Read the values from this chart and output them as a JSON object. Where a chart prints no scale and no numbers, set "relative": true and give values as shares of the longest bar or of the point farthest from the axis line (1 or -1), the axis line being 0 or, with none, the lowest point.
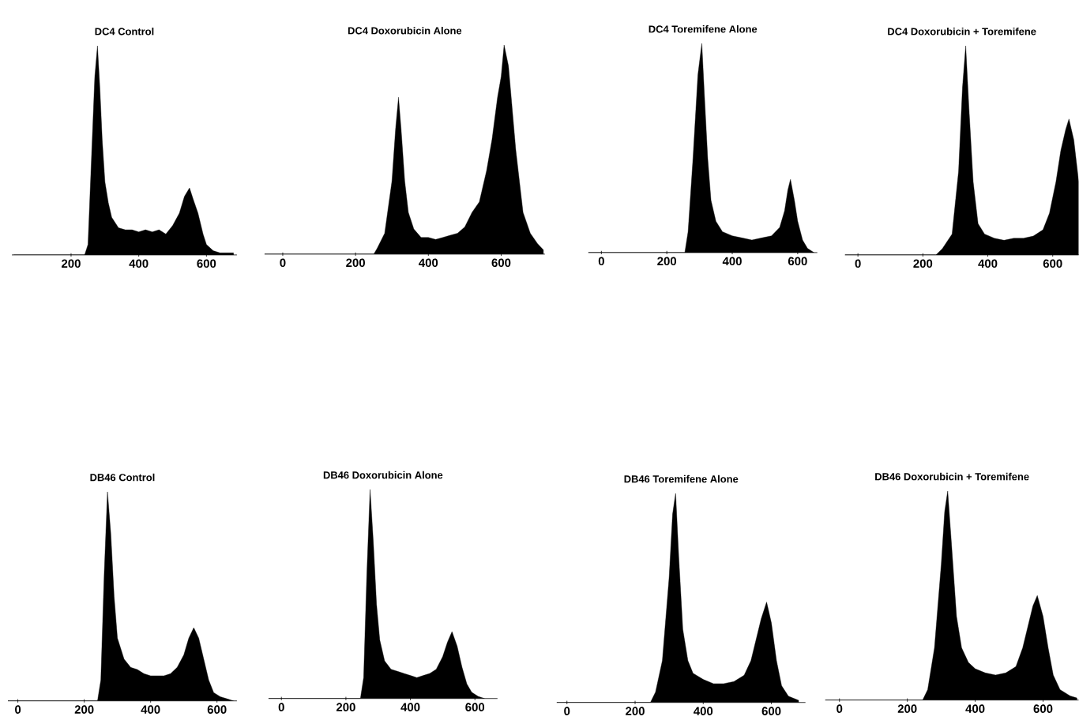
{
  "chart_data": [
    {
      "type": "area",
      "title": "DC4 Control",
      "relative": true,
      "color": "#000000",
      "xlim": [
        25,
        690
      ],
      "xticks": [
        200,
        400,
        600
      ],
      "x": [
        30,
        240,
        250,
        260,
        270,
        278,
        285,
        292,
        300,
        310,
        320,
        340,
        360,
        380,
        400,
        420,
        440,
        460,
        480,
        500,
        520,
        535,
        550,
        560,
        575,
        590,
        600,
        620,
        640,
        660,
        680
      ],
      "values": [
        0,
        0,
        0.05,
        0.45,
        0.85,
        1.0,
        0.8,
        0.55,
        0.35,
        0.25,
        0.18,
        0.13,
        0.12,
        0.12,
        0.11,
        0.12,
        0.11,
        0.12,
        0.1,
        0.14,
        0.2,
        0.28,
        0.32,
        0.27,
        0.2,
        0.1,
        0.05,
        0.02,
        0.01,
        0.01,
        0.01
      ]
    },
    {
      "type": "area",
      "title": "DC4 Doxorubicin Alone",
      "relative": true,
      "color": "#000000",
      "xlim": [
        -50,
        720
      ],
      "xticks": [
        0,
        200,
        400,
        600
      ],
      "x": [
        -50,
        250,
        260,
        280,
        300,
        310,
        318,
        325,
        335,
        345,
        360,
        380,
        400,
        420,
        440,
        460,
        480,
        500,
        520,
        540,
        560,
        575,
        590,
        600,
        608,
        620,
        630,
        640,
        650,
        660,
        680,
        700,
        716
      ],
      "values": [
        0,
        0,
        0.03,
        0.1,
        0.35,
        0.6,
        0.75,
        0.6,
        0.35,
        0.2,
        0.12,
        0.08,
        0.08,
        0.07,
        0.08,
        0.09,
        0.1,
        0.13,
        0.2,
        0.25,
        0.4,
        0.55,
        0.75,
        0.85,
        1.0,
        0.9,
        0.7,
        0.5,
        0.35,
        0.2,
        0.1,
        0.05,
        0.02
      ]
    },
    {
      "type": "area",
      "title": "DC4 Toremifene Alone",
      "relative": true,
      "color": "#000000",
      "xlim": [
        -40,
        660
      ],
      "xticks": [
        0,
        200,
        400,
        600
      ],
      "x": [
        -40,
        255,
        265,
        280,
        295,
        307,
        315,
        325,
        335,
        350,
        370,
        400,
        430,
        460,
        490,
        520,
        545,
        560,
        570,
        578,
        590,
        600,
        615,
        630,
        650
      ],
      "values": [
        0,
        0,
        0.1,
        0.45,
        0.85,
        1.0,
        0.75,
        0.45,
        0.25,
        0.15,
        0.1,
        0.08,
        0.07,
        0.06,
        0.07,
        0.08,
        0.12,
        0.2,
        0.3,
        0.35,
        0.25,
        0.15,
        0.06,
        0.02,
        0
      ]
    },
    {
      "type": "area",
      "title": "DC4 Doxorubicin + Toremifene",
      "relative": true,
      "color": "#000000",
      "xlim": [
        -40,
        680
      ],
      "xticks": [
        0,
        200,
        400,
        600
      ],
      "x": [
        -40,
        240,
        260,
        290,
        310,
        322,
        332,
        342,
        355,
        370,
        390,
        420,
        450,
        480,
        510,
        540,
        570,
        590,
        610,
        625,
        640,
        650,
        665,
        680
      ],
      "values": [
        0,
        0,
        0.03,
        0.1,
        0.4,
        0.8,
        1.0,
        0.7,
        0.35,
        0.15,
        0.1,
        0.08,
        0.07,
        0.08,
        0.08,
        0.09,
        0.12,
        0.2,
        0.35,
        0.5,
        0.6,
        0.65,
        0.55,
        0.35
      ]
    },
    {
      "type": "area",
      "title": "DB46 Control",
      "relative": true,
      "color": "#000000",
      "xlim": [
        -30,
        660
      ],
      "xticks": [
        0,
        200,
        400,
        600
      ],
      "x": [
        -30,
        240,
        250,
        260,
        270,
        280,
        290,
        300,
        320,
        340,
        360,
        380,
        400,
        420,
        440,
        460,
        480,
        500,
        515,
        530,
        545,
        560,
        575,
        590,
        610,
        630,
        650
      ],
      "values": [
        0,
        0,
        0.1,
        0.6,
        1.0,
        0.8,
        0.5,
        0.3,
        0.2,
        0.16,
        0.15,
        0.13,
        0.12,
        0.12,
        0.12,
        0.13,
        0.16,
        0.22,
        0.3,
        0.35,
        0.3,
        0.2,
        0.1,
        0.04,
        0.02,
        0.01,
        0
      ]
    },
    {
      "type": "area",
      "title": "DB46 Doxorubicin Alone",
      "relative": true,
      "color": "#000000",
      "xlim": [
        -40,
        670
      ],
      "xticks": [
        0,
        200,
        400,
        600
      ],
      "x": [
        -40,
        245,
        255,
        265,
        275,
        285,
        295,
        305,
        320,
        340,
        360,
        380,
        400,
        420,
        440,
        460,
        480,
        500,
        515,
        529,
        545,
        560,
        575,
        590,
        610,
        630
      ],
      "values": [
        0,
        0,
        0.1,
        0.6,
        1.0,
        0.75,
        0.45,
        0.28,
        0.18,
        0.14,
        0.13,
        0.12,
        0.11,
        0.1,
        0.11,
        0.12,
        0.14,
        0.2,
        0.27,
        0.32,
        0.25,
        0.15,
        0.07,
        0.03,
        0.01,
        0
      ]
    },
    {
      "type": "area",
      "title": "DB46 Toremifene Alone",
      "relative": true,
      "color": "#000000",
      "xlim": [
        -30,
        700
      ],
      "xticks": [
        0,
        200,
        400,
        600
      ],
      "x": [
        -30,
        245,
        260,
        280,
        300,
        310,
        319,
        328,
        340,
        355,
        370,
        400,
        430,
        460,
        490,
        520,
        540,
        555,
        570,
        586,
        600,
        615,
        630,
        650,
        680
      ],
      "values": [
        0,
        0,
        0.05,
        0.2,
        0.6,
        0.9,
        1.0,
        0.7,
        0.35,
        0.2,
        0.14,
        0.11,
        0.09,
        0.09,
        0.1,
        0.13,
        0.2,
        0.3,
        0.4,
        0.48,
        0.38,
        0.2,
        0.08,
        0.03,
        0.01
      ]
    },
    {
      "type": "area",
      "title": "DB46 Doxorubicin + Toremifene",
      "relative": true,
      "color": "#000000",
      "xlim": [
        -42,
        705
      ],
      "xticks": [
        0,
        200,
        400,
        600
      ],
      "x": [
        -42,
        245,
        260,
        280,
        300,
        310,
        319,
        330,
        345,
        360,
        380,
        400,
        430,
        460,
        490,
        520,
        540,
        555,
        570,
        583,
        600,
        615,
        630,
        650,
        680,
        700
      ],
      "values": [
        0,
        0,
        0.05,
        0.25,
        0.65,
        0.9,
        1.0,
        0.75,
        0.4,
        0.25,
        0.18,
        0.15,
        0.13,
        0.12,
        0.13,
        0.16,
        0.25,
        0.35,
        0.45,
        0.5,
        0.4,
        0.25,
        0.12,
        0.05,
        0.02,
        0.01
      ]
    }
  ]
}
